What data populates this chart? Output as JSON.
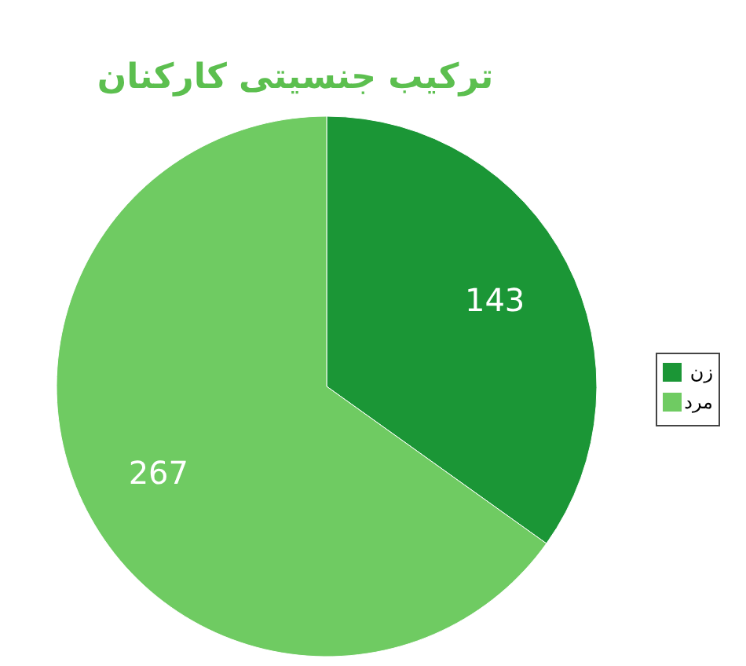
{
  "chart_data": {
    "type": "pie",
    "title": "ترکیب جنسیتی کارکنان",
    "categories": [
      "زن",
      "مرد"
    ],
    "values": [
      143,
      267
    ],
    "colors": [
      "#1b9636",
      "#6fcb62"
    ],
    "data_labels": true,
    "legend": "right"
  }
}
